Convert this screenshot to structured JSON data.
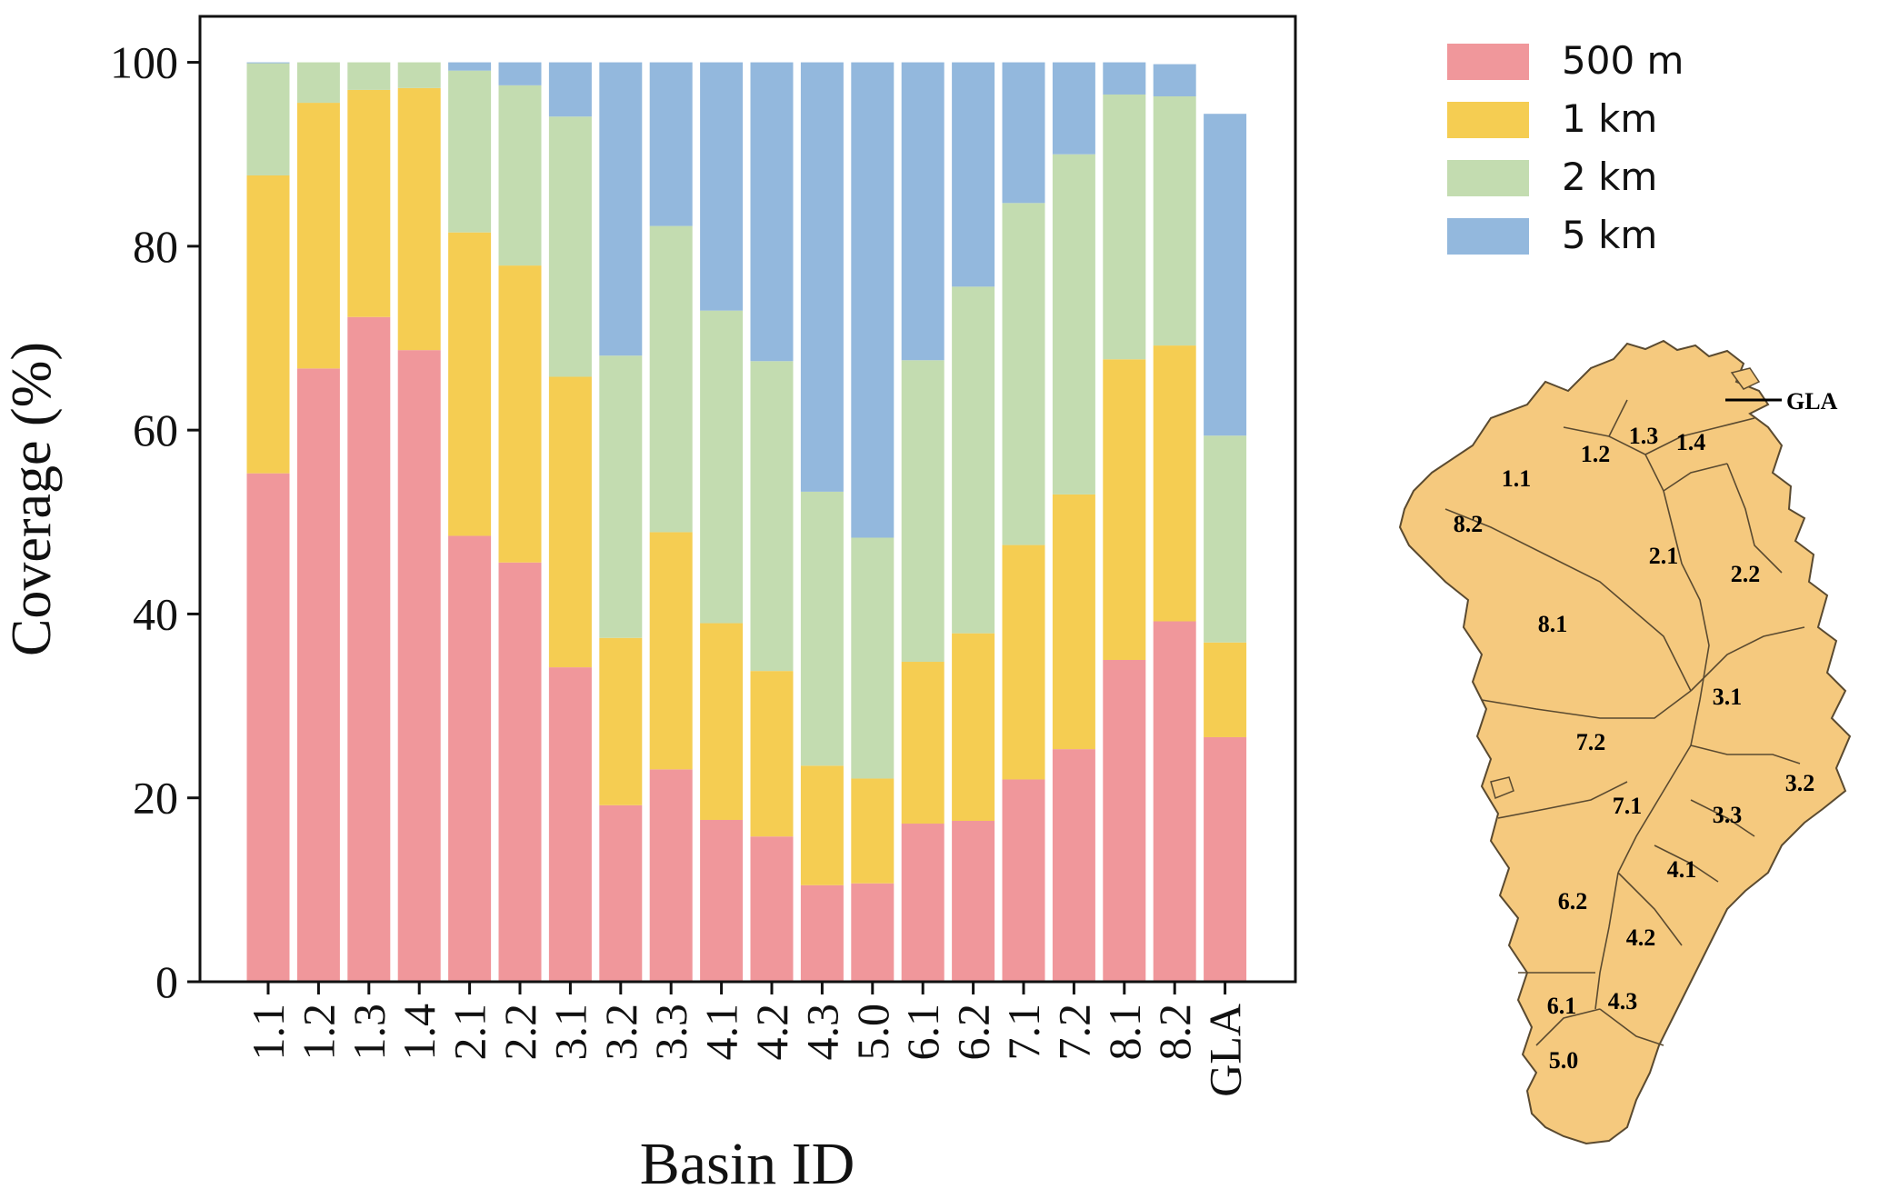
{
  "chart_data": {
    "type": "bar",
    "stacked": true,
    "xlabel": "Basin ID",
    "ylabel": "Coverage (%)",
    "ylim": [
      0,
      105
    ],
    "yticks": [
      0,
      20,
      40,
      60,
      80,
      100
    ],
    "categories": [
      "1.1",
      "1.2",
      "1.3",
      "1.4",
      "2.1",
      "2.2",
      "3.1",
      "3.2",
      "3.3",
      "4.1",
      "4.2",
      "4.3",
      "5.0",
      "6.1",
      "6.2",
      "7.1",
      "7.2",
      "8.1",
      "8.2",
      "GLA"
    ],
    "legend_position": "top-right, outside plot",
    "grid": false,
    "series": [
      {
        "name": "500 m",
        "color": "#f0979b",
        "values": [
          55.3,
          66.7,
          72.3,
          68.7,
          48.5,
          45.6,
          34.2,
          19.2,
          23.1,
          17.6,
          15.8,
          10.5,
          10.7,
          17.2,
          17.5,
          22.0,
          25.3,
          35.0,
          39.2,
          26.6
        ]
      },
      {
        "name": "1 km",
        "color": "#f5cd52",
        "values": [
          32.4,
          28.9,
          24.7,
          28.5,
          33.0,
          32.3,
          31.6,
          18.2,
          25.8,
          21.4,
          18.0,
          13.0,
          11.4,
          17.6,
          20.4,
          25.5,
          27.7,
          32.7,
          30.0,
          10.3
        ]
      },
      {
        "name": "2 km",
        "color": "#c3dcb0",
        "values": [
          12.2,
          4.4,
          3.0,
          2.8,
          17.6,
          19.6,
          28.3,
          30.7,
          33.3,
          34.0,
          33.7,
          29.8,
          26.2,
          32.8,
          37.7,
          37.2,
          37.0,
          28.8,
          27.1,
          22.5
        ]
      },
      {
        "name": "5 km",
        "color": "#93b8dd",
        "values": [
          0.1,
          0.0,
          0.0,
          0.0,
          0.9,
          2.5,
          5.9,
          31.9,
          17.8,
          27.0,
          32.5,
          46.7,
          51.7,
          32.4,
          24.4,
          15.3,
          10.0,
          3.5,
          3.5,
          35.0
        ]
      }
    ]
  },
  "map": {
    "fill_color": "#f5c97e",
    "line_color": "#5a4a30",
    "basin_labels": [
      "1.1",
      "1.2",
      "1.3",
      "1.4",
      "2.1",
      "2.2",
      "3.1",
      "3.2",
      "3.3",
      "4.1",
      "4.2",
      "4.3",
      "5.0",
      "6.1",
      "6.2",
      "7.1",
      "7.2",
      "8.1",
      "8.2"
    ],
    "callout_label": "GLA"
  }
}
